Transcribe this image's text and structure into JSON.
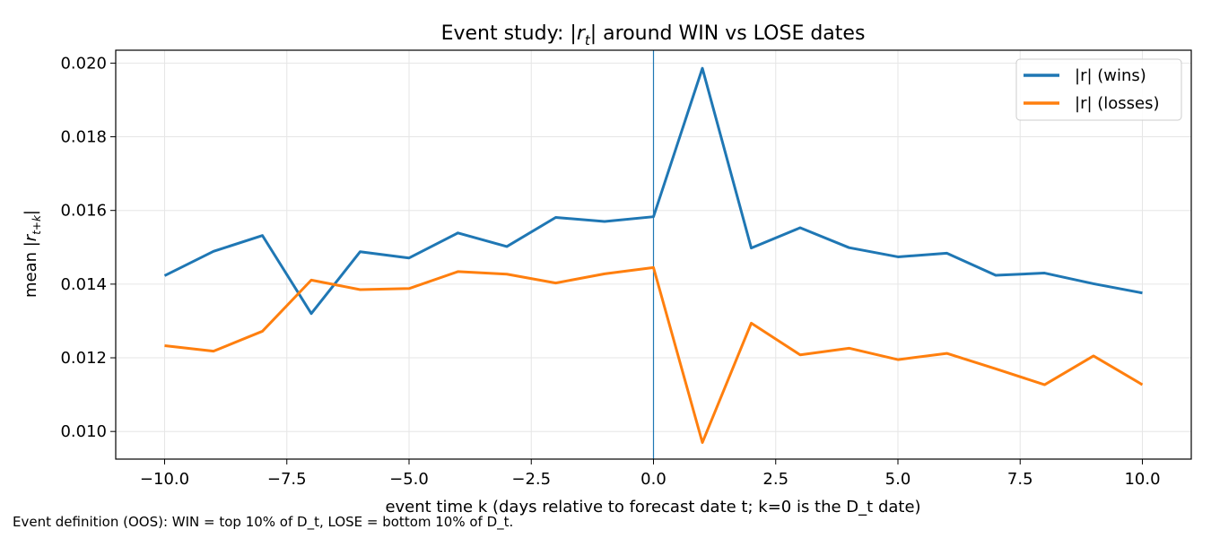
{
  "chart_data": {
    "type": "line",
    "title": "Event study: |r_t| around WIN vs LOSE dates",
    "title_parts": {
      "prefix": "Event study: |",
      "var": "r",
      "sub": "t",
      "suffix": "| around WIN vs LOSE dates"
    },
    "xlabel": "event time k (days relative to forecast date t; k=0 is the D_t date)",
    "ylabel": "mean |r_{t+k}|",
    "ylabel_parts": {
      "prefix": "mean |",
      "var": "r",
      "sub": "t+k",
      "suffix": "|"
    },
    "xlim": [
      -11,
      11
    ],
    "ylim": [
      0.00925,
      0.02035
    ],
    "xticks": [
      -10.0,
      -7.5,
      -5.0,
      -2.5,
      0.0,
      2.5,
      5.0,
      7.5,
      10.0
    ],
    "xtick_labels": [
      "−10.0",
      "−7.5",
      "−5.0",
      "−2.5",
      "0.0",
      "2.5",
      "5.0",
      "7.5",
      "10.0"
    ],
    "yticks": [
      0.01,
      0.012,
      0.014,
      0.016,
      0.018,
      0.02
    ],
    "ytick_labels": [
      "0.010",
      "0.012",
      "0.014",
      "0.016",
      "0.018",
      "0.020"
    ],
    "grid": true,
    "vline_x": 0,
    "legend_position": "top-right",
    "x": [
      -10,
      -9,
      -8,
      -7,
      -6,
      -5,
      -4,
      -3,
      -2,
      -1,
      0,
      1,
      2,
      3,
      4,
      5,
      6,
      7,
      8,
      9,
      10
    ],
    "series": [
      {
        "name": "|r| (wins)",
        "color": "#1f77b4",
        "values": [
          0.01423,
          0.01489,
          0.01532,
          0.0132,
          0.01488,
          0.01471,
          0.01539,
          0.01502,
          0.01581,
          0.0157,
          0.01583,
          0.01986,
          0.01498,
          0.01553,
          0.01499,
          0.01474,
          0.01484,
          0.01424,
          0.0143,
          0.01401,
          0.01376
        ]
      },
      {
        "name": "|r| (losses)",
        "color": "#ff7f0e",
        "values": [
          0.01233,
          0.01218,
          0.01272,
          0.01411,
          0.01385,
          0.01388,
          0.01434,
          0.01427,
          0.01403,
          0.01428,
          0.01445,
          0.0097,
          0.01294,
          0.01208,
          0.01226,
          0.01195,
          0.01212,
          0.0117,
          0.01127,
          0.01205,
          0.01127
        ]
      }
    ]
  },
  "footnote": "Event definition (OOS): WIN = top 10% of D_t, LOSE = bottom 10% of D_t.",
  "colors": {
    "wins": "#1f77b4",
    "losses": "#ff7f0e",
    "vline": "#1f77b4",
    "grid": "#e6e6e6"
  }
}
